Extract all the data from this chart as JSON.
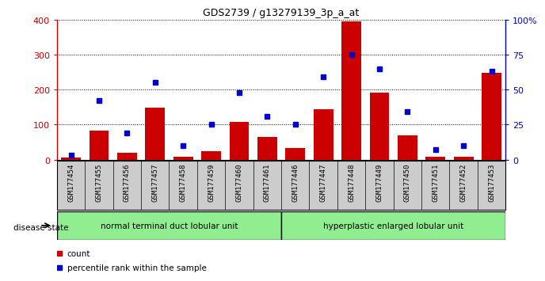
{
  "title": "GDS2739 / g13279139_3p_a_at",
  "samples": [
    "GSM177454",
    "GSM177455",
    "GSM177456",
    "GSM177457",
    "GSM177458",
    "GSM177459",
    "GSM177460",
    "GSM177461",
    "GSM177446",
    "GSM177447",
    "GSM177448",
    "GSM177449",
    "GSM177450",
    "GSM177451",
    "GSM177452",
    "GSM177453"
  ],
  "counts": [
    5,
    82,
    20,
    148,
    8,
    25,
    108,
    65,
    32,
    143,
    395,
    192,
    70,
    8,
    8,
    248
  ],
  "percentiles": [
    3,
    42,
    19,
    55,
    10,
    25,
    48,
    31,
    25,
    59,
    75,
    65,
    34,
    7,
    10,
    63
  ],
  "group1_label": "normal terminal duct lobular unit",
  "group2_label": "hyperplastic enlarged lobular unit",
  "group1_count": 8,
  "group2_count": 8,
  "bar_color": "#cc0000",
  "dot_color": "#0000cc",
  "ylim_left": [
    0,
    400
  ],
  "ylim_right": [
    0,
    100
  ],
  "yticks_left": [
    0,
    100,
    200,
    300,
    400
  ],
  "yticks_right": [
    0,
    25,
    50,
    75,
    100
  ],
  "ytick_labels_right": [
    "0",
    "25",
    "50",
    "75",
    "100%"
  ],
  "label_bg": "#cccccc",
  "group_bg": "#90ee90",
  "disease_state_label": "disease state",
  "legend_count_label": "count",
  "legend_pct_label": "percentile rank within the sample"
}
